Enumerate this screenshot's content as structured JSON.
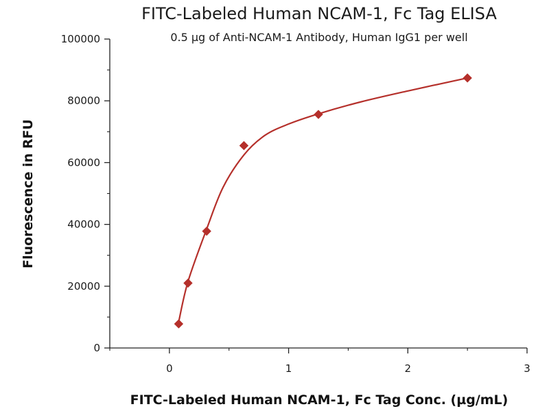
{
  "chart_data": {
    "type": "scatter",
    "title": "FITC-Labeled Human NCAM-1, Fc Tag ELISA",
    "subtitle": "0.5 µg of Anti-NCAM-1 Antibody, Human IgG1 per well",
    "xlabel": "FITC-Labeled Human NCAM-1, Fc Tag Conc. (µg/mL)",
    "ylabel": "Fluorescence in RFU",
    "xlim": [
      -0.5,
      3
    ],
    "ylim": [
      0,
      100000
    ],
    "x_ticks": [
      0,
      1,
      2,
      3
    ],
    "x_tick_labels": [
      "0",
      "1",
      "2",
      "3"
    ],
    "y_ticks": [
      0,
      20000,
      40000,
      60000,
      80000,
      100000
    ],
    "y_tick_labels": [
      "0",
      "20000",
      "40000",
      "60000",
      "80000",
      "100000"
    ],
    "grid": false,
    "series": [
      {
        "marker": "diamond",
        "color": "#b5302b",
        "x": [
          0.078,
          0.156,
          0.3125,
          0.625,
          1.25,
          2.5
        ],
        "y": [
          7800,
          21000,
          37800,
          65500,
          75600,
          87400
        ]
      }
    ],
    "fit_curve": {
      "color": "#b5302b",
      "x": [
        0.078,
        0.156,
        0.3125,
        0.45,
        0.625,
        0.8,
        1.0,
        1.25,
        1.6,
        2.0,
        2.5
      ],
      "y": [
        8500,
        21500,
        38500,
        52000,
        62500,
        68800,
        72500,
        75800,
        79600,
        83200,
        87400
      ]
    }
  }
}
